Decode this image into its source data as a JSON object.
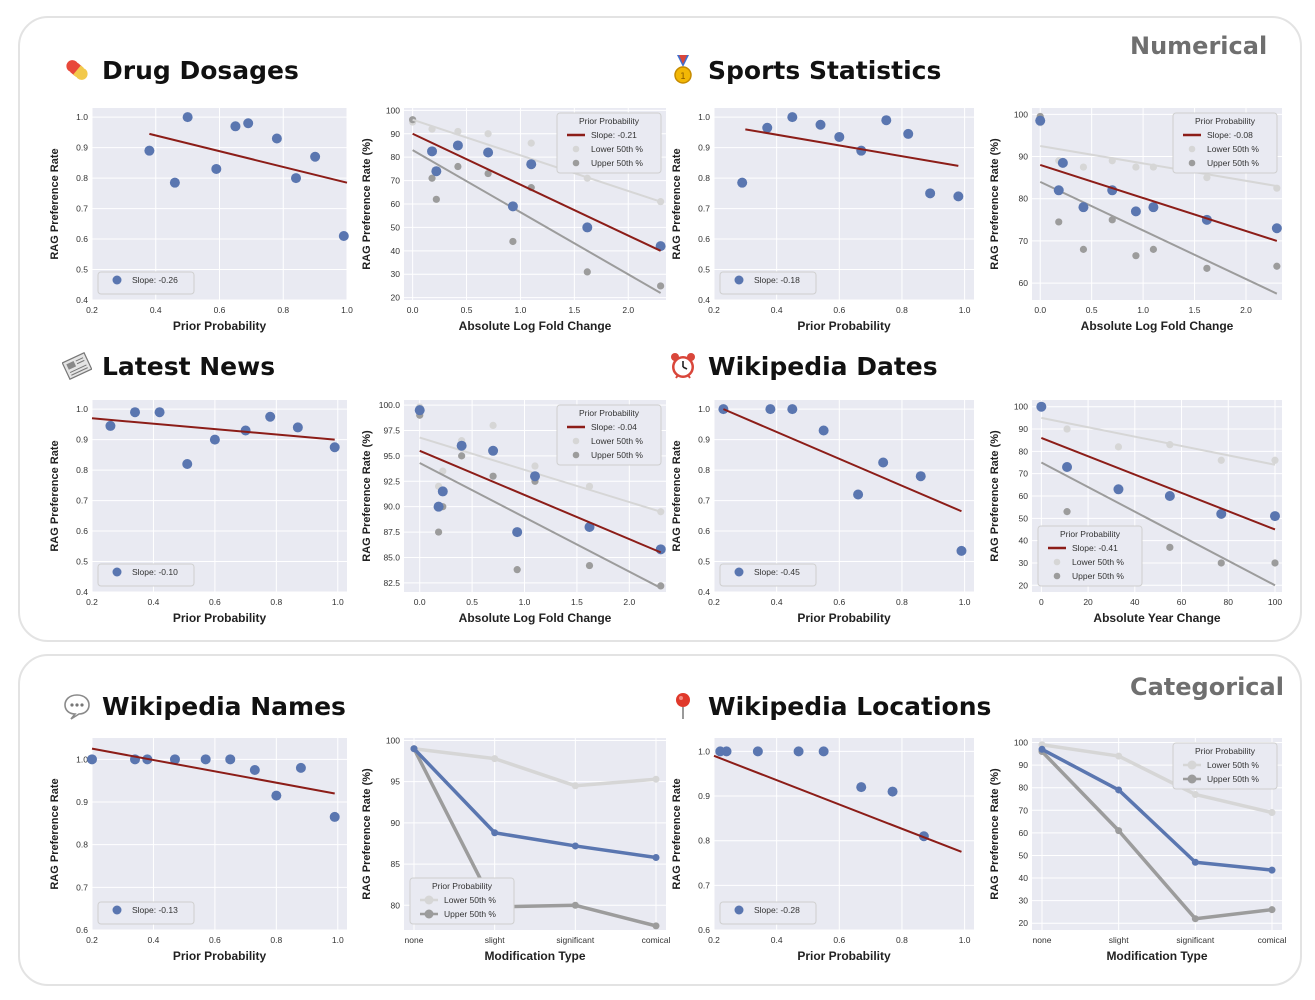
{
  "groups": {
    "numerical": "Numerical",
    "categorical": "Categorical"
  },
  "sections": {
    "drug": {
      "icon": "pill-icon",
      "title": "Drug Dosages"
    },
    "sports": {
      "icon": "medal-icon",
      "title": "Sports Statistics"
    },
    "news": {
      "icon": "newspaper-icon",
      "title": "Latest News"
    },
    "wdates": {
      "icon": "alarm-clock-icon",
      "title": "Wikipedia Dates"
    },
    "wnames": {
      "icon": "speech-bubble-icon",
      "title": "Wikipedia Names"
    },
    "wlocs": {
      "icon": "pin-icon",
      "title": "Wikipedia Locations"
    }
  },
  "colors": {
    "plot_bg": "#e9eaf2",
    "blue": "#5a76b0",
    "red": "#8c1d18",
    "light_gray": "#d6d6d6",
    "dark_gray": "#9c9c9c"
  },
  "chart_data": [
    {
      "id": "drug-prior",
      "type": "scatter",
      "xlabel": "Prior Probability",
      "ylabel": "RAG Preference Rate",
      "xlim": [
        0.2,
        1.0
      ],
      "ylim": [
        0.4,
        1.03
      ],
      "xticks": [
        "0.2",
        "0.4",
        "0.6",
        "0.8",
        "1.0"
      ],
      "yticks": [
        "0.4",
        "0.5",
        "0.6",
        "0.7",
        "0.8",
        "0.9",
        "1.0"
      ],
      "points": [
        [
          0.38,
          0.89
        ],
        [
          0.46,
          0.785
        ],
        [
          0.5,
          1.0
        ],
        [
          0.59,
          0.83
        ],
        [
          0.65,
          0.97
        ],
        [
          0.69,
          0.98
        ],
        [
          0.78,
          0.93
        ],
        [
          0.84,
          0.8
        ],
        [
          0.9,
          0.87
        ],
        [
          0.99,
          0.61
        ]
      ],
      "fit": [
        [
          0.38,
          0.945
        ],
        [
          1.0,
          0.785
        ]
      ],
      "legend": [
        "Slope: -0.26"
      ],
      "legend_position": "lower-left"
    },
    {
      "id": "drug-logfold",
      "type": "scatter",
      "xlabel": "Absolute Log Fold Change",
      "ylabel": "RAG Preference Rate (%)",
      "xlim": [
        -0.08,
        2.35
      ],
      "ylim": [
        19,
        101
      ],
      "xticks": [
        "0.0",
        "0.5",
        "1.0",
        "1.5",
        "2.0"
      ],
      "yticks": [
        "20",
        "30",
        "40",
        "50",
        "60",
        "70",
        "80",
        "90",
        "100"
      ],
      "points": [
        [
          0.18,
          82.5
        ],
        [
          0.22,
          74
        ],
        [
          0.42,
          85
        ],
        [
          0.7,
          82
        ],
        [
          1.1,
          77
        ],
        [
          0.93,
          59
        ],
        [
          1.62,
          50
        ],
        [
          2.3,
          42
        ]
      ],
      "upper_points": [
        [
          0.0,
          96
        ],
        [
          0.18,
          71
        ],
        [
          0.22,
          62
        ],
        [
          0.42,
          76
        ],
        [
          0.7,
          73
        ],
        [
          0.93,
          44
        ],
        [
          1.1,
          67
        ],
        [
          1.62,
          31
        ],
        [
          2.3,
          25
        ]
      ],
      "lower_points": [
        [
          0.0,
          95
        ],
        [
          0.18,
          92
        ],
        [
          0.42,
          91
        ],
        [
          0.7,
          90
        ],
        [
          1.1,
          86
        ],
        [
          1.62,
          71
        ],
        [
          2.3,
          61
        ]
      ],
      "fit": [
        [
          0.0,
          90
        ],
        [
          2.3,
          40
        ]
      ],
      "fit_lower": [
        [
          0.0,
          96
        ],
        [
          2.3,
          61
        ]
      ],
      "fit_upper": [
        [
          0.0,
          83
        ],
        [
          2.3,
          22
        ]
      ],
      "legend_title": "Prior Probability",
      "legend": [
        "Slope: -0.21",
        "Lower 50th %",
        "Upper 50th %"
      ],
      "legend_position": "upper-right"
    },
    {
      "id": "sports-prior",
      "type": "scatter",
      "xlabel": "Prior Probability",
      "ylabel": "RAG Preference Rate",
      "xlim": [
        0.2,
        1.03
      ],
      "ylim": [
        0.4,
        1.03
      ],
      "xticks": [
        "0.2",
        "0.4",
        "0.6",
        "0.8",
        "1.0"
      ],
      "yticks": [
        "0.4",
        "0.5",
        "0.6",
        "0.7",
        "0.8",
        "0.9",
        "1.0"
      ],
      "points": [
        [
          0.29,
          0.785
        ],
        [
          0.37,
          0.965
        ],
        [
          0.45,
          1.0
        ],
        [
          0.54,
          0.975
        ],
        [
          0.6,
          0.935
        ],
        [
          0.67,
          0.89
        ],
        [
          0.75,
          0.99
        ],
        [
          0.82,
          0.945
        ],
        [
          0.89,
          0.75
        ],
        [
          0.98,
          0.74
        ]
      ],
      "fit": [
        [
          0.3,
          0.96
        ],
        [
          0.98,
          0.84
        ]
      ],
      "legend": [
        "Slope: -0.18"
      ],
      "legend_position": "lower-left"
    },
    {
      "id": "sports-logfold",
      "type": "scatter",
      "xlabel": "Absolute Log Fold Change",
      "ylabel": "RAG Preference Rate (%)",
      "xlim": [
        -0.08,
        2.35
      ],
      "ylim": [
        56,
        101.5
      ],
      "xticks": [
        "0.0",
        "0.5",
        "1.0",
        "1.5",
        "2.0"
      ],
      "yticks": [
        "60",
        "70",
        "80",
        "90",
        "100"
      ],
      "points": [
        [
          0.0,
          98.5
        ],
        [
          0.18,
          82
        ],
        [
          0.22,
          88.5
        ],
        [
          0.42,
          78
        ],
        [
          0.7,
          82
        ],
        [
          0.93,
          77
        ],
        [
          1.1,
          78
        ],
        [
          1.62,
          75
        ],
        [
          2.3,
          73
        ]
      ],
      "upper_points": [
        [
          0.0,
          99.5
        ],
        [
          0.18,
          74.5
        ],
        [
          0.42,
          68
        ],
        [
          0.7,
          75
        ],
        [
          0.93,
          66.5
        ],
        [
          1.1,
          68
        ],
        [
          1.62,
          63.5
        ],
        [
          2.3,
          64
        ]
      ],
      "lower_points": [
        [
          0.0,
          98
        ],
        [
          0.18,
          89
        ],
        [
          0.42,
          87.5
        ],
        [
          0.7,
          89
        ],
        [
          0.93,
          87.5
        ],
        [
          1.1,
          87.5
        ],
        [
          1.62,
          85
        ],
        [
          2.3,
          82.5
        ]
      ],
      "fit": [
        [
          0.0,
          88
        ],
        [
          2.3,
          70
        ]
      ],
      "fit_lower": [
        [
          0.0,
          92.5
        ],
        [
          2.3,
          83
        ]
      ],
      "fit_upper": [
        [
          0.0,
          84
        ],
        [
          2.3,
          57.5
        ]
      ],
      "legend_title": "Prior Probability",
      "legend": [
        "Slope: -0.08",
        "Lower 50th %",
        "Upper 50th %"
      ],
      "legend_position": "upper-right"
    },
    {
      "id": "news-prior",
      "type": "scatter",
      "xlabel": "Prior Probability",
      "ylabel": "RAG Preference Rate",
      "xlim": [
        0.2,
        1.03
      ],
      "ylim": [
        0.4,
        1.03
      ],
      "xticks": [
        "0.2",
        "0.4",
        "0.6",
        "0.8",
        "1.0"
      ],
      "yticks": [
        "0.4",
        "0.5",
        "0.6",
        "0.7",
        "0.8",
        "0.9",
        "1.0"
      ],
      "points": [
        [
          0.26,
          0.945
        ],
        [
          0.34,
          0.99
        ],
        [
          0.42,
          0.99
        ],
        [
          0.51,
          0.82
        ],
        [
          0.6,
          0.9
        ],
        [
          0.7,
          0.93
        ],
        [
          0.78,
          0.975
        ],
        [
          0.87,
          0.94
        ],
        [
          0.99,
          0.875
        ]
      ],
      "fit": [
        [
          0.2,
          0.97
        ],
        [
          0.99,
          0.9
        ]
      ],
      "legend": [
        "Slope: -0.10"
      ],
      "legend_position": "lower-left"
    },
    {
      "id": "news-logfold",
      "type": "scatter",
      "xlabel": "Absolute Log Fold Change",
      "ylabel": "RAG Preference Rate (%)",
      "xlim": [
        -0.15,
        2.35
      ],
      "ylim": [
        81.6,
        100.5
      ],
      "xticks": [
        "0.0",
        "0.5",
        "1.0",
        "1.5",
        "2.0"
      ],
      "yticks": [
        "82.5",
        "85.0",
        "87.5",
        "90.0",
        "92.5",
        "95.0",
        "97.5",
        "100.0"
      ],
      "points": [
        [
          0.0,
          99.5
        ],
        [
          0.18,
          90
        ],
        [
          0.22,
          91.5
        ],
        [
          0.4,
          96
        ],
        [
          0.7,
          95.5
        ],
        [
          0.93,
          87.5
        ],
        [
          1.1,
          93
        ],
        [
          1.62,
          88
        ],
        [
          2.3,
          85.8
        ]
      ],
      "upper_points": [
        [
          0.0,
          99
        ],
        [
          0.18,
          87.5
        ],
        [
          0.22,
          90
        ],
        [
          0.4,
          95
        ],
        [
          0.7,
          93
        ],
        [
          0.93,
          83.8
        ],
        [
          1.1,
          92.5
        ],
        [
          1.62,
          84.2
        ],
        [
          2.3,
          82.2
        ]
      ],
      "lower_points": [
        [
          0.0,
          99.8
        ],
        [
          0.18,
          92
        ],
        [
          0.22,
          93.5
        ],
        [
          0.4,
          96.5
        ],
        [
          0.7,
          98
        ],
        [
          1.1,
          94
        ],
        [
          1.62,
          92
        ],
        [
          2.3,
          89.5
        ]
      ],
      "fit": [
        [
          0.0,
          95.5
        ],
        [
          2.3,
          85.5
        ]
      ],
      "fit_lower": [
        [
          0.0,
          96.8
        ],
        [
          2.3,
          89.5
        ]
      ],
      "fit_upper": [
        [
          0.0,
          94.3
        ],
        [
          2.3,
          82
        ]
      ],
      "legend_title": "Prior Probability",
      "legend": [
        "Slope: -0.04",
        "Lower 50th %",
        "Upper 50th %"
      ],
      "legend_position": "upper-right"
    },
    {
      "id": "wdates-prior",
      "type": "scatter",
      "xlabel": "Prior Probability",
      "ylabel": "RAG Preference Rate",
      "xlim": [
        0.2,
        1.03
      ],
      "ylim": [
        0.4,
        1.03
      ],
      "xticks": [
        "0.2",
        "0.4",
        "0.6",
        "0.8",
        "1.0"
      ],
      "yticks": [
        "0.4",
        "0.5",
        "0.6",
        "0.7",
        "0.8",
        "0.9",
        "1.0"
      ],
      "points": [
        [
          0.23,
          1.0
        ],
        [
          0.38,
          1.0
        ],
        [
          0.45,
          1.0
        ],
        [
          0.55,
          0.93
        ],
        [
          0.66,
          0.72
        ],
        [
          0.74,
          0.825
        ],
        [
          0.86,
          0.78
        ],
        [
          0.99,
          0.535
        ]
      ],
      "fit": [
        [
          0.23,
          1.0
        ],
        [
          0.99,
          0.665
        ]
      ],
      "legend": [
        "Slope: -0.45"
      ],
      "legend_position": "lower-left"
    },
    {
      "id": "wdates-year",
      "type": "scatter",
      "xlabel": "Absolute Year Change",
      "ylabel": "RAG Preference Rate (%)",
      "xlim": [
        -4,
        103
      ],
      "ylim": [
        17,
        103
      ],
      "xticks": [
        "0",
        "20",
        "40",
        "60",
        "80",
        "100"
      ],
      "yticks": [
        "20",
        "30",
        "40",
        "50",
        "60",
        "70",
        "80",
        "90",
        "100"
      ],
      "points": [
        [
          0,
          100
        ],
        [
          11,
          73
        ],
        [
          33,
          63
        ],
        [
          55,
          60
        ],
        [
          77,
          52
        ],
        [
          100,
          51
        ]
      ],
      "upper_points": [
        [
          11,
          53
        ],
        [
          33,
          45
        ],
        [
          55,
          37
        ],
        [
          77,
          30
        ],
        [
          100,
          30
        ]
      ],
      "lower_points": [
        [
          11,
          90
        ],
        [
          33,
          82
        ],
        [
          55,
          83
        ],
        [
          77,
          76
        ],
        [
          100,
          76
        ]
      ],
      "fit": [
        [
          0,
          86
        ],
        [
          100,
          45
        ]
      ],
      "fit_lower": [
        [
          0,
          95
        ],
        [
          100,
          74
        ]
      ],
      "fit_upper": [
        [
          0,
          75
        ],
        [
          100,
          20
        ]
      ],
      "legend_title": "Prior Probability",
      "legend": [
        "Slope: -0.41",
        "Lower 50th %",
        "Upper 50th %"
      ],
      "legend_position": "lower-left"
    },
    {
      "id": "wnames-prior",
      "type": "scatter",
      "xlabel": "Prior Probability",
      "ylabel": "RAG Preference Rate",
      "xlim": [
        0.2,
        1.03
      ],
      "ylim": [
        0.6,
        1.05
      ],
      "xticks": [
        "0.2",
        "0.4",
        "0.6",
        "0.8",
        "1.0"
      ],
      "yticks": [
        "0.6",
        "0.7",
        "0.8",
        "0.9",
        "1.0"
      ],
      "points": [
        [
          0.2,
          1.0
        ],
        [
          0.34,
          1.0
        ],
        [
          0.38,
          1.0
        ],
        [
          0.47,
          1.0
        ],
        [
          0.57,
          1.0
        ],
        [
          0.65,
          1.0
        ],
        [
          0.73,
          0.975
        ],
        [
          0.8,
          0.915
        ],
        [
          0.88,
          0.98
        ],
        [
          0.99,
          0.865
        ]
      ],
      "fit": [
        [
          0.2,
          1.025
        ],
        [
          0.99,
          0.92
        ]
      ],
      "legend": [
        "Slope: -0.13"
      ],
      "legend_position": "lower-left"
    },
    {
      "id": "wnames-mod",
      "type": "line",
      "xlabel": "Modification Type",
      "ylabel": "RAG Preference Rate (%)",
      "categories": [
        "none",
        "slight",
        "significant",
        "comical"
      ],
      "ylim": [
        77,
        100.3
      ],
      "yticks": [
        "80",
        "85",
        "90",
        "95",
        "100"
      ],
      "series": [
        {
          "name": "Lower 50th %",
          "values": [
            99,
            97.8,
            94.5,
            95.3
          ]
        },
        {
          "name": "Upper 50th %",
          "values": [
            99,
            79.8,
            80,
            77.5
          ]
        },
        {
          "name": "",
          "values": [
            99,
            88.8,
            87.2,
            85.8
          ]
        }
      ],
      "legend_title": "Prior Probability",
      "legend": [
        "Lower 50th %",
        "Upper 50th %"
      ],
      "legend_position": "lower-left"
    },
    {
      "id": "wlocs-prior",
      "type": "scatter",
      "xlabel": "Prior Probability",
      "ylabel": "RAG Preference Rate",
      "xlim": [
        0.2,
        1.03
      ],
      "ylim": [
        0.6,
        1.03
      ],
      "xticks": [
        "0.2",
        "0.4",
        "0.6",
        "0.8",
        "1.0"
      ],
      "yticks": [
        "0.6",
        "0.7",
        "0.8",
        "0.9",
        "1.0"
      ],
      "points": [
        [
          0.22,
          1.0
        ],
        [
          0.24,
          1.0
        ],
        [
          0.34,
          1.0
        ],
        [
          0.47,
          1.0
        ],
        [
          0.55,
          1.0
        ],
        [
          0.67,
          0.92
        ],
        [
          0.77,
          0.91
        ],
        [
          0.87,
          0.81
        ]
      ],
      "fit": [
        [
          0.2,
          0.99
        ],
        [
          0.99,
          0.775
        ]
      ],
      "legend": [
        "Slope: -0.28"
      ],
      "legend_position": "lower-left"
    },
    {
      "id": "wlocs-mod",
      "type": "line",
      "xlabel": "Modification Type",
      "ylabel": "RAG Preference Rate (%)",
      "categories": [
        "none",
        "slight",
        "significant",
        "comical"
      ],
      "ylim": [
        17,
        102
      ],
      "yticks": [
        "20",
        "30",
        "40",
        "50",
        "60",
        "70",
        "80",
        "90",
        "100"
      ],
      "series": [
        {
          "name": "Lower 50th %",
          "values": [
            99,
            94,
            77,
            69
          ]
        },
        {
          "name": "Upper 50th %",
          "values": [
            96,
            61,
            22,
            26
          ]
        },
        {
          "name": "",
          "values": [
            97,
            79,
            47,
            43.5
          ]
        }
      ],
      "legend_title": "Prior Probability",
      "legend": [
        "Lower 50th %",
        "Upper 50th %"
      ],
      "legend_position": "upper-right"
    }
  ]
}
